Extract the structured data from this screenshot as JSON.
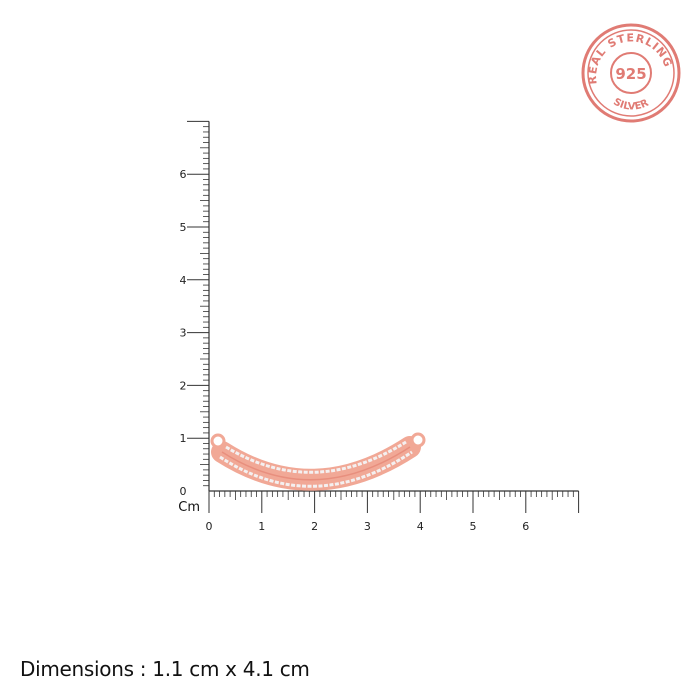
{
  "seal": {
    "top_text": "REAL STERLING",
    "center_text": "925",
    "bottom_text": "SILVER",
    "color": "#e07b74"
  },
  "ruler": {
    "unit_label": "Cm",
    "x_labels": [
      "0",
      "1",
      "2",
      "3",
      "4",
      "5",
      "6"
    ],
    "y_labels": [
      "0",
      "1",
      "2",
      "3",
      "4",
      "5",
      "6"
    ],
    "max_cm": 7,
    "minor_division_mm": 1,
    "color": "#333333"
  },
  "product": {
    "type": "curved pave bar pendant",
    "metal_color": "#f1a896",
    "stone_color": "#f4f0f0",
    "width_cm": 4.1,
    "height_cm": 1.1
  },
  "dimensions_text": "Dimensions : 1.1 cm x 4.1 cm"
}
